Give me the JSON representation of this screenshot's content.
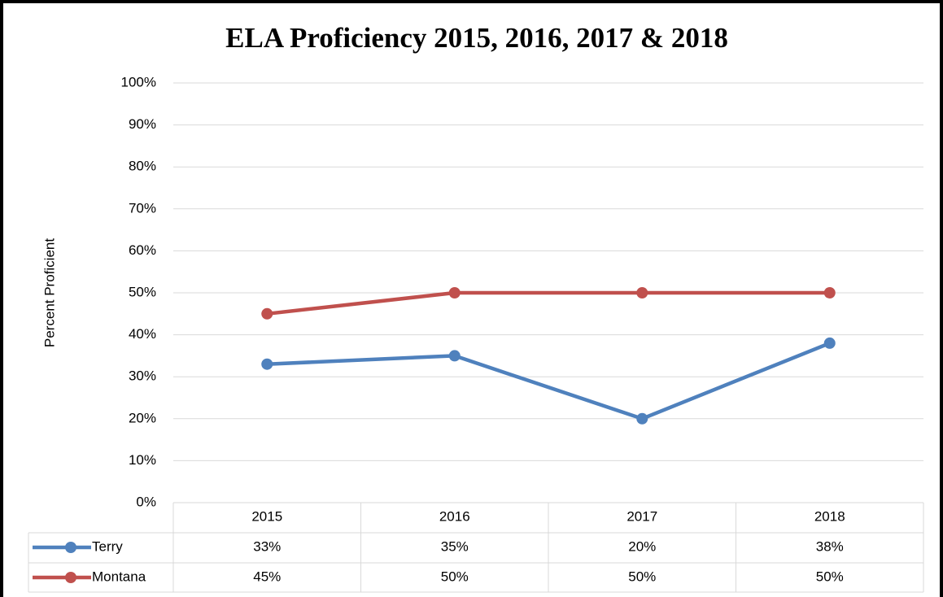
{
  "chart_data": {
    "type": "line",
    "title": "ELA Proficiency 2015, 2016, 2017 & 2018",
    "y_label": "Percent Proficient",
    "categories": [
      "2015",
      "2016",
      "2017",
      "2018"
    ],
    "series": [
      {
        "name": "Terry",
        "color": "#4f81bd",
        "values": [
          33,
          35,
          20,
          38
        ],
        "value_labels": [
          "33%",
          "35%",
          "20%",
          "38%"
        ]
      },
      {
        "name": "Montana",
        "color": "#c0504d",
        "values": [
          45,
          50,
          50,
          50
        ],
        "value_labels": [
          "45%",
          "50%",
          "50%",
          "50%"
        ]
      }
    ],
    "ylim": [
      0,
      100
    ],
    "yticks": [
      {
        "value": 0,
        "label": "0%"
      },
      {
        "value": 10,
        "label": "10%"
      },
      {
        "value": 20,
        "label": "20%"
      },
      {
        "value": 30,
        "label": "30%"
      },
      {
        "value": 40,
        "label": "40%"
      },
      {
        "value": 50,
        "label": "50%"
      },
      {
        "value": 60,
        "label": "60%"
      },
      {
        "value": 70,
        "label": "70%"
      },
      {
        "value": 80,
        "label": "80%"
      },
      {
        "value": 90,
        "label": "90%"
      },
      {
        "value": 100,
        "label": "100%"
      }
    ],
    "grid": true
  }
}
